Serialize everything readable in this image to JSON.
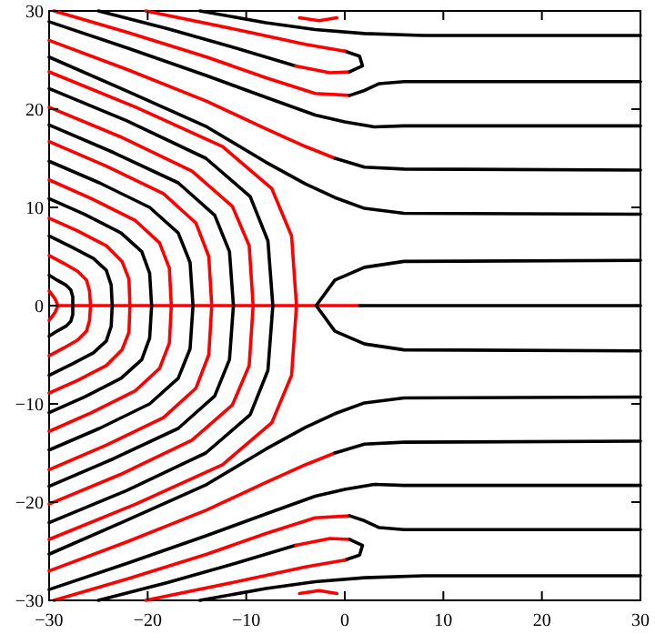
{
  "chart_data": {
    "type": "line",
    "xlim": [
      -30,
      30
    ],
    "ylim": [
      -30,
      30
    ],
    "xticks": [
      -30,
      -20,
      -10,
      0,
      10,
      20,
      30
    ],
    "yticks": [
      -30,
      -20,
      -10,
      0,
      10,
      20,
      30
    ],
    "grid": false,
    "marker": "none",
    "line_style": "solid",
    "series": [
      {
        "color": "#ff0000",
        "x": [
          -29,
          1.5
        ],
        "values": [
          0,
          0
        ]
      },
      {
        "color": "#000000",
        "x": [
          1.5,
          30
        ],
        "values": [
          0,
          0
        ]
      },
      {
        "color": "#000000",
        "x": [
          30,
          6,
          2,
          -1,
          -2.9,
          -1,
          2,
          6,
          30
        ],
        "values": [
          4.6,
          4.5,
          3.9,
          2.6,
          0,
          -2.6,
          -3.9,
          -4.5,
          -4.6
        ]
      },
      {
        "color": "#ff0000",
        "x": [
          -30,
          -29.4,
          -29.1,
          -29.4,
          -30
        ],
        "values": [
          -1.5,
          -0.7,
          0,
          0.7,
          1.5
        ]
      },
      {
        "color": "#000000",
        "x": [
          -30,
          -29.2,
          -28.3,
          -27.8,
          -27.6,
          -27.6,
          -27.6,
          -27.8,
          -28.3,
          -29.2,
          -30
        ],
        "values": [
          -3.1,
          -2.6,
          -2.1,
          -1.6,
          -0.9,
          0,
          0.9,
          1.6,
          2.1,
          2.6,
          3.1
        ]
      },
      {
        "color": "#ff0000",
        "x": [
          -30,
          -28.5,
          -27.1,
          -26.2,
          -25.9,
          -25.8,
          -25.9,
          -26.2,
          -27.1,
          -28.5,
          -30
        ],
        "values": [
          -5.1,
          -4.3,
          -3.5,
          -2.6,
          -1.5,
          0,
          1.5,
          2.6,
          3.5,
          4.3,
          5.1
        ]
      },
      {
        "color": "#000000",
        "x": [
          -30,
          -27.8,
          -25.5,
          -24.2,
          -23.7,
          -23.6,
          -23.7,
          -24.2,
          -25.5,
          -27.8,
          -30
        ],
        "values": [
          -7.1,
          -6,
          -4.8,
          -3.6,
          -2.1,
          0,
          2.1,
          3.6,
          4.8,
          6,
          7.1
        ]
      },
      {
        "color": "#ff0000",
        "x": [
          -30,
          -27.1,
          -24.2,
          -22.6,
          -21.9,
          -21.8,
          -21.9,
          -22.6,
          -24.2,
          -27.1,
          -30
        ],
        "values": [
          -8.9,
          -7.6,
          -6.1,
          -4.5,
          -2.7,
          0,
          2.7,
          4.5,
          6.1,
          7.6,
          8.9
        ]
      },
      {
        "color": "#000000",
        "x": [
          -30,
          -26.4,
          -22.7,
          -20.6,
          -19.8,
          -19.6,
          -19.8,
          -20.6,
          -22.7,
          -26.4,
          -30
        ],
        "values": [
          -10.9,
          -9.3,
          -7.4,
          -5.5,
          -3.3,
          0,
          3.3,
          5.5,
          7.4,
          9.3,
          10.9
        ]
      },
      {
        "color": "#ff0000",
        "x": [
          -30,
          -25.7,
          -21.3,
          -18.8,
          -17.8,
          -17.6,
          -17.8,
          -18.8,
          -21.3,
          -25.7,
          -30
        ],
        "values": [
          -12.8,
          -10.9,
          -8.7,
          -6.4,
          -3.8,
          0,
          3.8,
          6.4,
          8.7,
          10.9,
          12.8
        ]
      },
      {
        "color": "#000000",
        "x": [
          -30,
          -24.9,
          -19.8,
          -16.9,
          -15.7,
          -15.4,
          -15.7,
          -16.9,
          -19.8,
          -24.9,
          -30
        ],
        "values": [
          -14.7,
          -12.5,
          -10,
          -7.4,
          -4.4,
          0,
          4.4,
          7.4,
          10,
          12.5,
          14.7
        ]
      },
      {
        "color": "#ff0000",
        "x": [
          -30,
          -24.2,
          -18.4,
          -15.1,
          -13.8,
          -13.5,
          -13.8,
          -15.1,
          -18.4,
          -24.2,
          -30
        ],
        "values": [
          -16.7,
          -14.2,
          -11.4,
          -8.4,
          -5,
          0,
          5,
          8.4,
          11.4,
          14.2,
          16.7
        ]
      },
      {
        "color": "#000000",
        "x": [
          -30,
          -23.5,
          -16.9,
          -13.2,
          -11.7,
          -11.3,
          -11.7,
          -13.2,
          -16.9,
          -23.5,
          -30
        ],
        "values": [
          -18.4,
          -15.6,
          -12.5,
          -9.2,
          -5.5,
          0,
          5.5,
          9.2,
          12.5,
          15.6,
          18.4
        ]
      },
      {
        "color": "#ff0000",
        "x": [
          -30,
          -22.8,
          -15.5,
          -11.4,
          -9.7,
          -9.3,
          -9.7,
          -11.4,
          -15.5,
          -22.8,
          -30
        ],
        "values": [
          -20.2,
          -17.2,
          -13.7,
          -10.1,
          -6.1,
          0,
          6.1,
          10.1,
          13.7,
          17.2,
          20.2
        ]
      },
      {
        "color": "#000000",
        "x": [
          -30,
          -22.1,
          -14.1,
          -9.6,
          -7.8,
          -7.3,
          -7.8,
          -9.6,
          -14.1,
          -22.1,
          -30
        ],
        "values": [
          -22.1,
          -18.8,
          -15,
          -11.1,
          -6.6,
          0,
          6.6,
          11.1,
          15,
          18.8,
          22.1
        ]
      },
      {
        "color": "#ff0000",
        "x": [
          -30,
          -21.2,
          -12.4,
          -7.4,
          -5.4,
          -4.9,
          -5.4,
          -7.4,
          -12.4,
          -21.2,
          -30
        ],
        "values": [
          -23.8,
          -20.2,
          -16.2,
          -11.9,
          -7.1,
          0,
          7.1,
          11.9,
          16.2,
          20.2,
          23.8
        ]
      },
      {
        "color": "#000000",
        "x": [
          -30,
          -22,
          -14,
          -8,
          -4,
          -1,
          2,
          6,
          30
        ],
        "values": [
          25.3,
          21.8,
          18.2,
          14.6,
          12.4,
          11,
          9.9,
          9.4,
          9.3
        ]
      },
      {
        "color": "#ff0000",
        "x": [
          -30,
          -22,
          -14,
          -8,
          -4,
          -1
        ],
        "values": [
          27,
          24,
          20.8,
          18,
          16.2,
          15
        ]
      },
      {
        "color": "#000000",
        "x": [
          -1,
          2,
          6,
          30
        ],
        "values": [
          15,
          14.1,
          13.9,
          13.8
        ]
      },
      {
        "color": "#000000",
        "x": [
          -30,
          -22,
          -14,
          -8,
          -3,
          0,
          3,
          6,
          30
        ],
        "values": [
          28.9,
          26.2,
          23.4,
          21.2,
          19.4,
          18.7,
          18.2,
          18.3,
          18.3
        ]
      },
      {
        "color": "#ff0000",
        "x": [
          -29.5,
          -22,
          -14,
          -8,
          -3,
          0.5
        ],
        "values": [
          30,
          27.8,
          25.3,
          23.2,
          21.6,
          21.4
        ]
      },
      {
        "color": "#000000",
        "x": [
          0.5,
          2,
          3.5,
          6,
          30
        ],
        "values": [
          21.4,
          21.9,
          22.6,
          22.8,
          22.8
        ]
      },
      {
        "color": "#000000",
        "x": [
          -25,
          -18,
          -11,
          -5
        ],
        "values": [
          30,
          28.2,
          26.2,
          24.4
        ]
      },
      {
        "color": "#ff0000",
        "x": [
          -5,
          -1.5,
          0.5
        ],
        "values": [
          24.4,
          23.7,
          23.8
        ]
      },
      {
        "color": "#000000",
        "x": [
          0.5,
          1.8,
          1.5,
          0
        ],
        "values": [
          23.8,
          24.4,
          25.4,
          25.9
        ]
      },
      {
        "color": "#ff0000",
        "x": [
          0,
          -4,
          -10,
          -20.2
        ],
        "values": [
          25.9,
          26.6,
          27.9,
          30
        ]
      },
      {
        "color": "#000000",
        "x": [
          -14.7,
          -8,
          -3,
          2,
          8,
          30
        ],
        "values": [
          30,
          28.8,
          28.1,
          27.7,
          27.5,
          27.5
        ]
      },
      {
        "color": "#000000",
        "x": [
          -30,
          -22,
          -14,
          -8,
          -4,
          -1,
          2,
          6,
          30
        ],
        "values": [
          -25.3,
          -21.8,
          -18.2,
          -14.6,
          -12.4,
          -11,
          -9.9,
          -9.4,
          -9.3
        ]
      },
      {
        "color": "#ff0000",
        "x": [
          -30,
          -22,
          -14,
          -8,
          -4,
          -1
        ],
        "values": [
          -27,
          -24,
          -20.8,
          -18,
          -16.2,
          -15
        ]
      },
      {
        "color": "#000000",
        "x": [
          -1,
          2,
          6,
          30
        ],
        "values": [
          -15,
          -14.1,
          -13.9,
          -13.8
        ]
      },
      {
        "color": "#000000",
        "x": [
          -30,
          -22,
          -14,
          -8,
          -3,
          0,
          3,
          6,
          30
        ],
        "values": [
          -28.9,
          -26.2,
          -23.4,
          -21.2,
          -19.4,
          -18.7,
          -18.2,
          -18.3,
          -18.3
        ]
      },
      {
        "color": "#ff0000",
        "x": [
          -29.5,
          -22,
          -14,
          -8,
          -3,
          0.5
        ],
        "values": [
          -30,
          -27.8,
          -25.3,
          -23.2,
          -21.6,
          -21.4
        ]
      },
      {
        "color": "#000000",
        "x": [
          0.5,
          2,
          3.5,
          6,
          30
        ],
        "values": [
          -21.4,
          -21.9,
          -22.6,
          -22.8,
          -22.8
        ]
      },
      {
        "color": "#000000",
        "x": [
          -25,
          -18,
          -11,
          -5
        ],
        "values": [
          -30,
          -28.2,
          -26.2,
          -24.4
        ]
      },
      {
        "color": "#ff0000",
        "x": [
          -5,
          -1.5,
          0.5
        ],
        "values": [
          -24.4,
          -23.7,
          -23.8
        ]
      },
      {
        "color": "#000000",
        "x": [
          0.5,
          1.8,
          1.5,
          0
        ],
        "values": [
          -23.8,
          -24.4,
          -25.4,
          -25.9
        ]
      },
      {
        "color": "#ff0000",
        "x": [
          0,
          -4,
          -10,
          -20.2
        ],
        "values": [
          -25.9,
          -26.6,
          -27.9,
          -30
        ]
      },
      {
        "color": "#000000",
        "x": [
          -14.7,
          -8,
          -3,
          2,
          8,
          30
        ],
        "values": [
          -30,
          -28.8,
          -28.1,
          -27.7,
          -27.5,
          -27.5
        ]
      },
      {
        "color": "#ff0000",
        "x": [
          -4.6,
          -2.6,
          -0.8
        ],
        "values": [
          29.3,
          29,
          29.3
        ]
      },
      {
        "color": "#ff0000",
        "x": [
          -4.6,
          -2.6,
          -0.8
        ],
        "values": [
          -29.3,
          -29,
          -29.3
        ]
      }
    ]
  }
}
